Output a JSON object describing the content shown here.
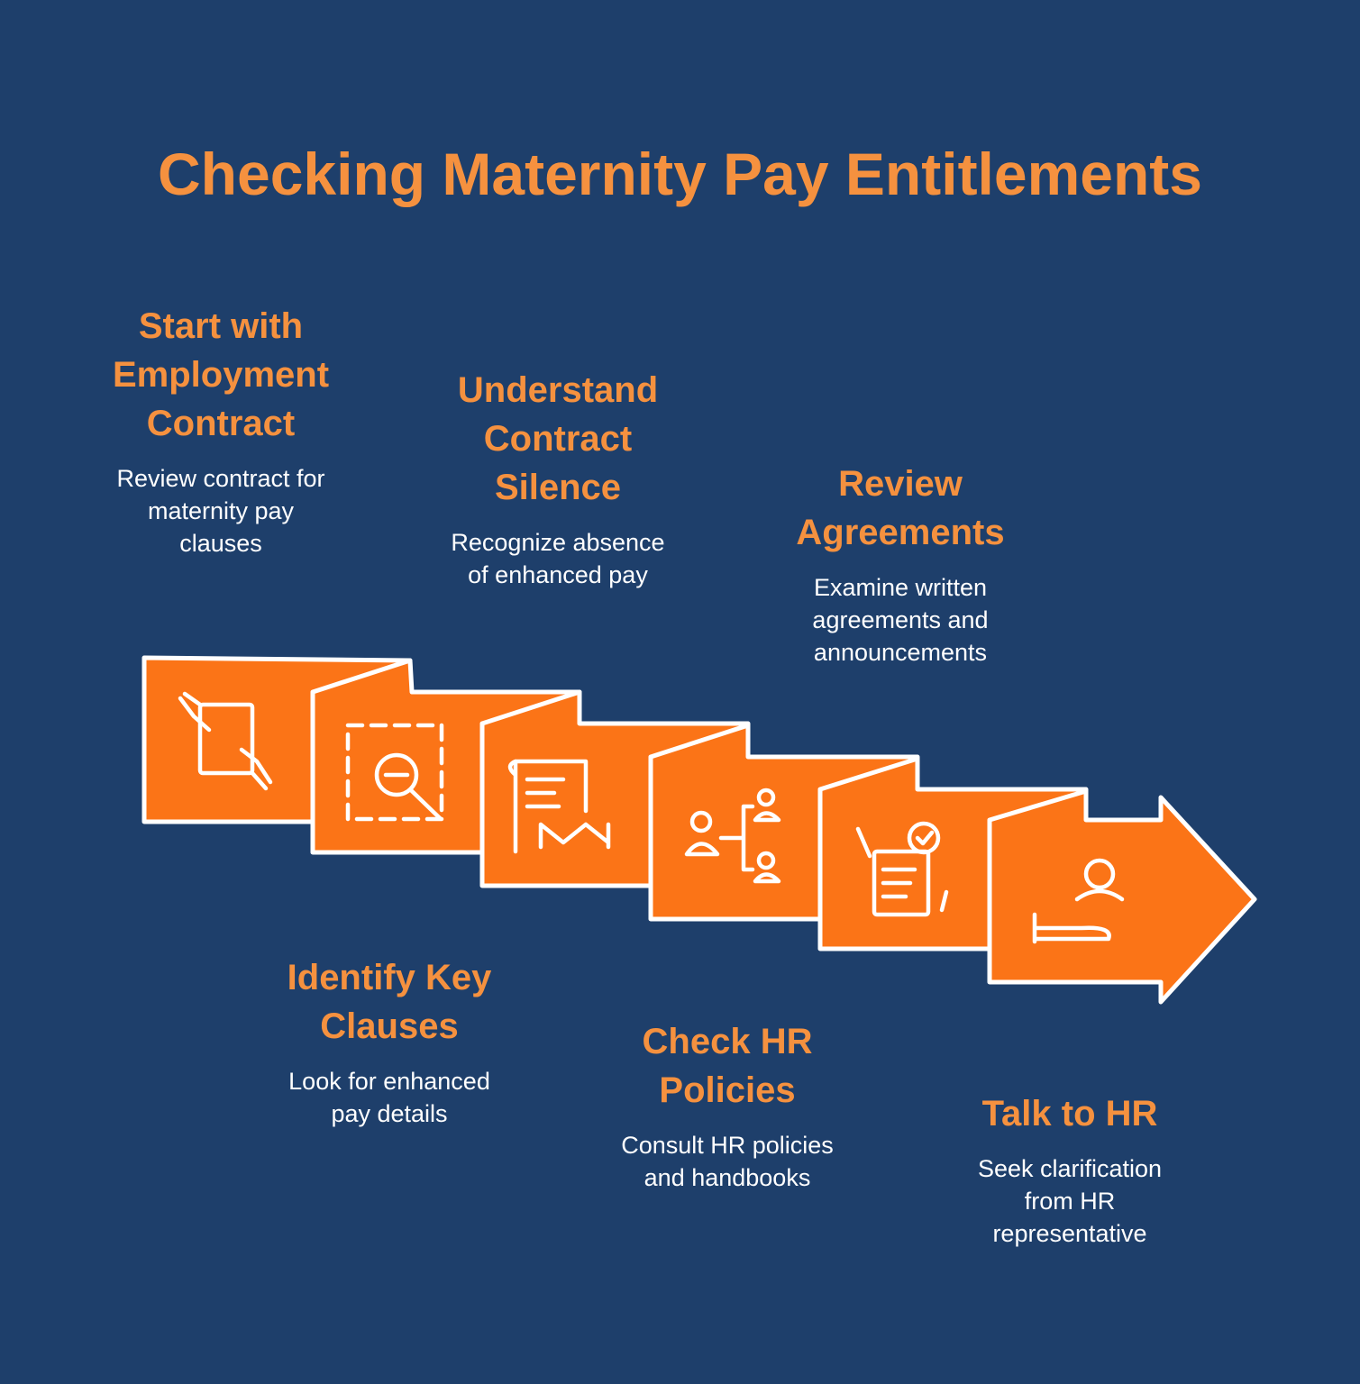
{
  "title": "Checking Maternity Pay Entitlements",
  "steps": [
    {
      "title": [
        "Start with",
        "Employment",
        "Contract"
      ],
      "description": [
        "Review contract for",
        "maternity pay",
        "clauses"
      ]
    },
    {
      "title": [
        "Identify Key",
        "Clauses"
      ],
      "description": [
        "Look for enhanced",
        "pay details"
      ]
    },
    {
      "title": [
        "Understand",
        "Contract",
        "Silence"
      ],
      "description": [
        "Recognize absence",
        "of enhanced pay"
      ]
    },
    {
      "title": [
        "Check HR",
        "Policies"
      ],
      "description": [
        "Consult HR policies",
        "and handbooks"
      ]
    },
    {
      "title": [
        "Review",
        "Agreements"
      ],
      "description": [
        "Examine written",
        "agreements and",
        "announcements"
      ]
    },
    {
      "title": [
        "Talk to HR"
      ],
      "description": [
        "Seek clarification",
        "from HR",
        "representative"
      ]
    }
  ]
}
